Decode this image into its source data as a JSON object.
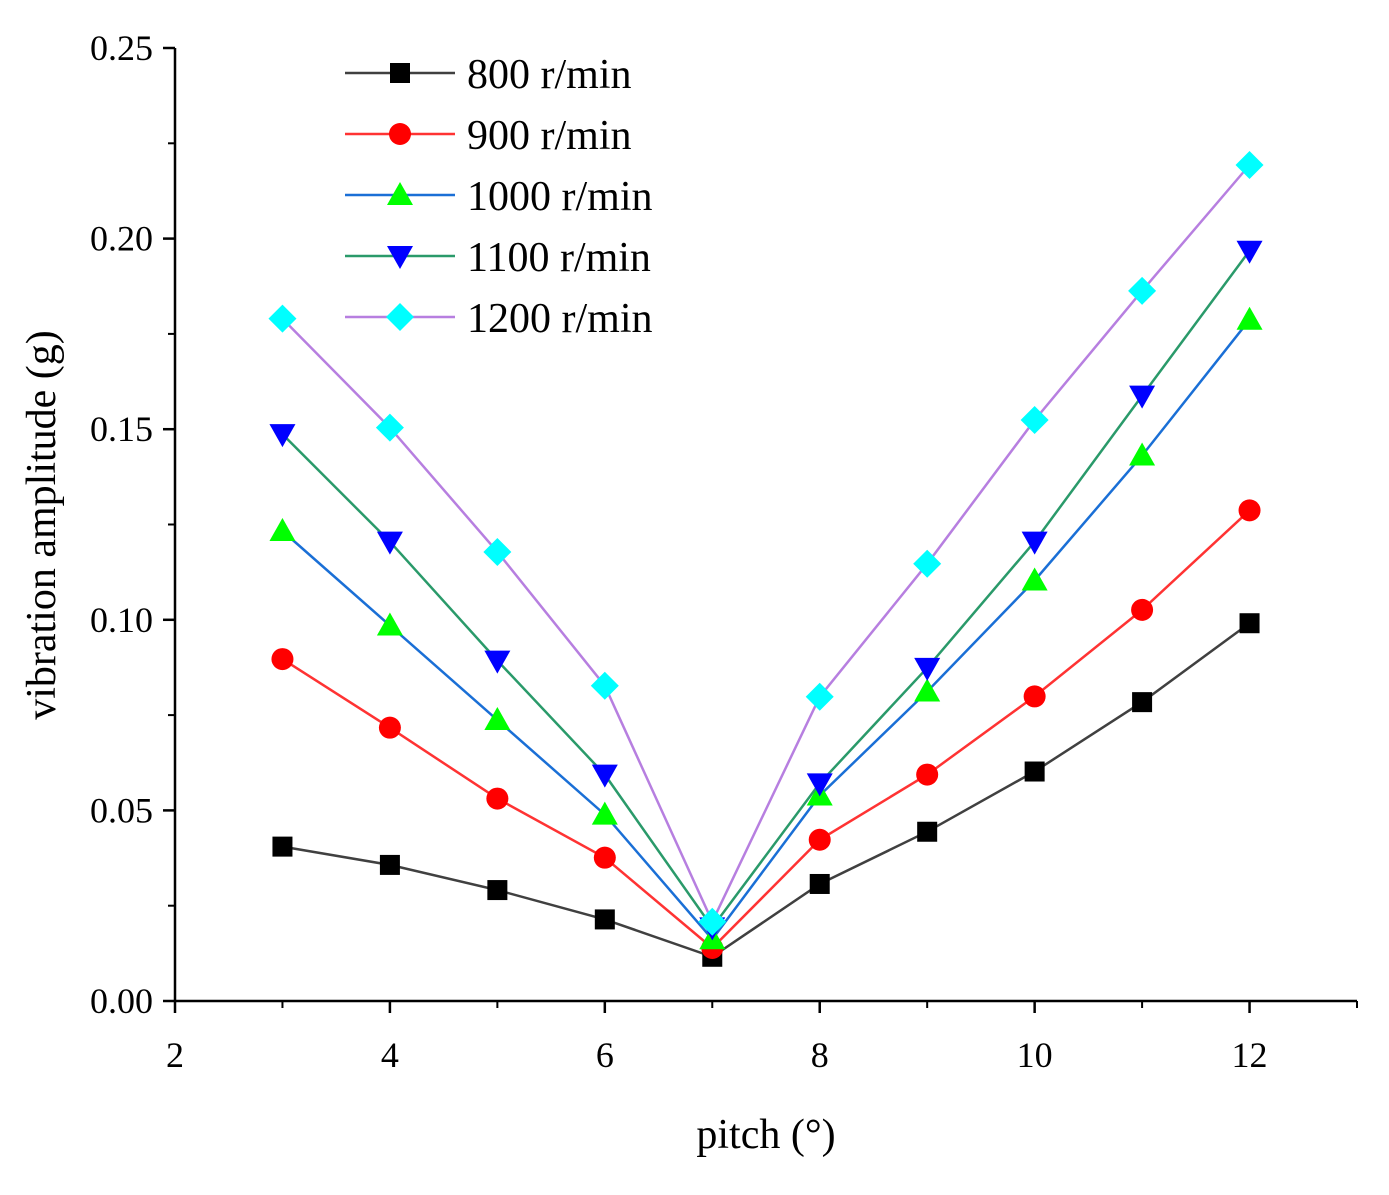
{
  "chart_data": {
    "type": "line",
    "title": "",
    "xlabel": "pitch (°)",
    "ylabel": "vibration amplitude (g)",
    "xlim": [
      2,
      13
    ],
    "ylim": [
      0,
      0.25
    ],
    "xticks": [
      2,
      4,
      6,
      8,
      10,
      12
    ],
    "xtick_labels": [
      "2",
      "4",
      "6",
      "8",
      "10",
      "12"
    ],
    "yticks": [
      0,
      0.05,
      0.1,
      0.15,
      0.2,
      0.25
    ],
    "ytick_labels": [
      "0.00",
      "0.05",
      "0.10",
      "0.15",
      "0.20",
      "0.25"
    ],
    "grid": false,
    "legend_position": "top-left",
    "x": [
      3,
      4,
      5,
      6,
      7,
      8,
      9,
      10,
      11,
      12
    ],
    "series": [
      {
        "name": "800 r/min",
        "line_color": "#404040",
        "marker_color": "#000000",
        "marker": "square",
        "values": [
          0.0405,
          0.0357,
          0.0291,
          0.0214,
          0.0116,
          0.0307,
          0.0444,
          0.0602,
          0.0784,
          0.0991
        ]
      },
      {
        "name": "900 r/min",
        "line_color": "#ff3333",
        "marker_color": "#ff0000",
        "marker": "circle",
        "values": [
          0.0897,
          0.0717,
          0.0531,
          0.0376,
          0.0139,
          0.0423,
          0.0594,
          0.0799,
          0.1026,
          0.1287
        ]
      },
      {
        "name": "1000 r/min",
        "line_color": "#1a6fd6",
        "marker_color": "#00ff00",
        "marker": "triangle-up",
        "values": [
          0.1233,
          0.0985,
          0.0737,
          0.0489,
          0.0162,
          0.0539,
          0.0812,
          0.1103,
          0.1431,
          0.1787
        ]
      },
      {
        "name": "1100 r/min",
        "line_color": "#2a9a6a",
        "marker_color": "#0000ff",
        "marker": "triangle-down",
        "values": [
          0.1487,
          0.1205,
          0.0893,
          0.0594,
          0.0193,
          0.0571,
          0.0874,
          0.1205,
          0.1588,
          0.1968
        ]
      },
      {
        "name": "1200 r/min",
        "line_color": "#b77fe0",
        "marker_color": "#00ffff",
        "marker": "diamond",
        "values": [
          0.179,
          0.1504,
          0.1178,
          0.0827,
          0.0208,
          0.0798,
          0.1147,
          0.1524,
          0.1863,
          0.2193
        ]
      }
    ]
  }
}
